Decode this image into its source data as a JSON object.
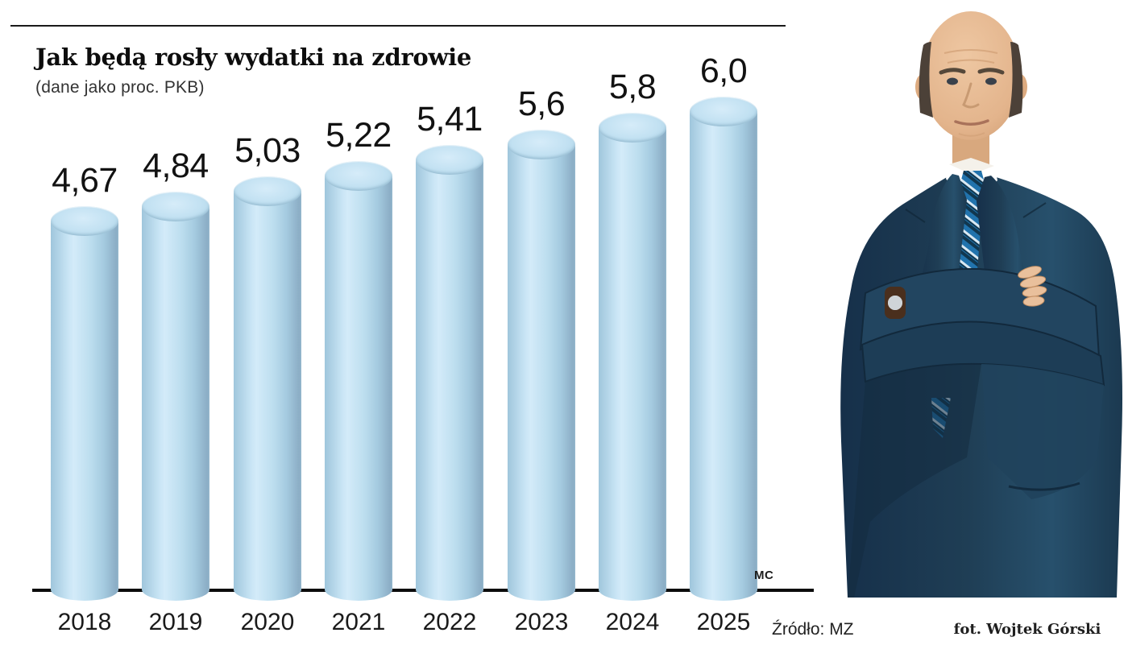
{
  "page": {
    "title": "Jak będą rosły wydatki na zdrowie",
    "subtitle": "(dane jako proc. PKB)",
    "credit_initials": "MC",
    "source": "Źródło: MZ",
    "photo_caption": "fot. Wojtek Górski"
  },
  "chart_data": {
    "type": "bar",
    "variant": "3d-cylinder",
    "title": "Jak będą rosły wydatki na zdrowie",
    "subtitle": "(dane jako proc. PKB)",
    "unit": "proc. PKB",
    "categories": [
      "2018",
      "2019",
      "2020",
      "2021",
      "2022",
      "2023",
      "2024",
      "2025"
    ],
    "values": [
      4.67,
      4.84,
      5.03,
      5.22,
      5.41,
      5.6,
      5.8,
      6.0
    ],
    "value_labels": [
      "4,67",
      "4,84",
      "5,03",
      "5,22",
      "5,41",
      "5,6",
      "5,8",
      "6,0"
    ],
    "ylim": [
      0,
      6.5
    ],
    "grid": false,
    "legend": "none",
    "axis_color": "#0b0b0b",
    "bar_color_top": "#c2e1f2",
    "bar_color_highlight": "#d3ebf9",
    "bar_color_shadow": "#8badc5",
    "source": "Źródło: MZ"
  },
  "photo": {
    "caption": "fot. Wojtek Górski",
    "description": "balding man in dark navy suit with blue striped tie, arms crossed",
    "suit_color": "#1f3e55",
    "tie_color": "#2173ad",
    "shirt_color": "#f4f1ea"
  }
}
